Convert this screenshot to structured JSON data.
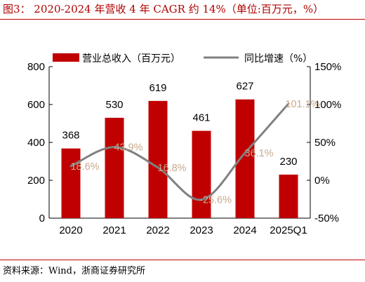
{
  "title": "图3： 2020-2024 年营收 4 年 CAGR 约 14%（单位:百万元，%）",
  "source": "资料来源：Wind，浙商证券研究所",
  "colors": {
    "bar": "#c00000",
    "line": "#808080",
    "line_label": "#c8a98c",
    "title": "#b00000"
  },
  "chart_data": {
    "type": "bar",
    "categories": [
      "2020",
      "2021",
      "2022",
      "2023",
      "2024",
      "2025Q1"
    ],
    "series": [
      {
        "name": "营业总收入（百万元）",
        "type": "bar",
        "axis": "left",
        "values": [
          368,
          530,
          619,
          461,
          627,
          230
        ],
        "labels": [
          "368",
          "530",
          "619",
          "461",
          "627",
          "230"
        ]
      },
      {
        "name": "同比增速（%）",
        "type": "line",
        "axis": "right",
        "smooth": true,
        "values": [
          18.6,
          43.9,
          16.8,
          -25.6,
          36.1,
          101.1
        ],
        "labels": [
          "18.6%",
          "43.9%",
          "16.8%",
          "-25.6%",
          "36.1%",
          "101.1%"
        ]
      }
    ],
    "y_left": {
      "min": 0,
      "max": 800,
      "ticks": [
        0,
        200,
        400,
        600,
        800
      ],
      "tick_labels": [
        "0",
        "200",
        "400",
        "600",
        "800"
      ]
    },
    "y_right": {
      "min": -50,
      "max": 150,
      "ticks": [
        -50,
        0,
        50,
        100,
        150
      ],
      "tick_labels": [
        "-50%",
        "0%",
        "50%",
        "100%",
        "150%"
      ]
    },
    "legend": "top",
    "grid": false
  }
}
